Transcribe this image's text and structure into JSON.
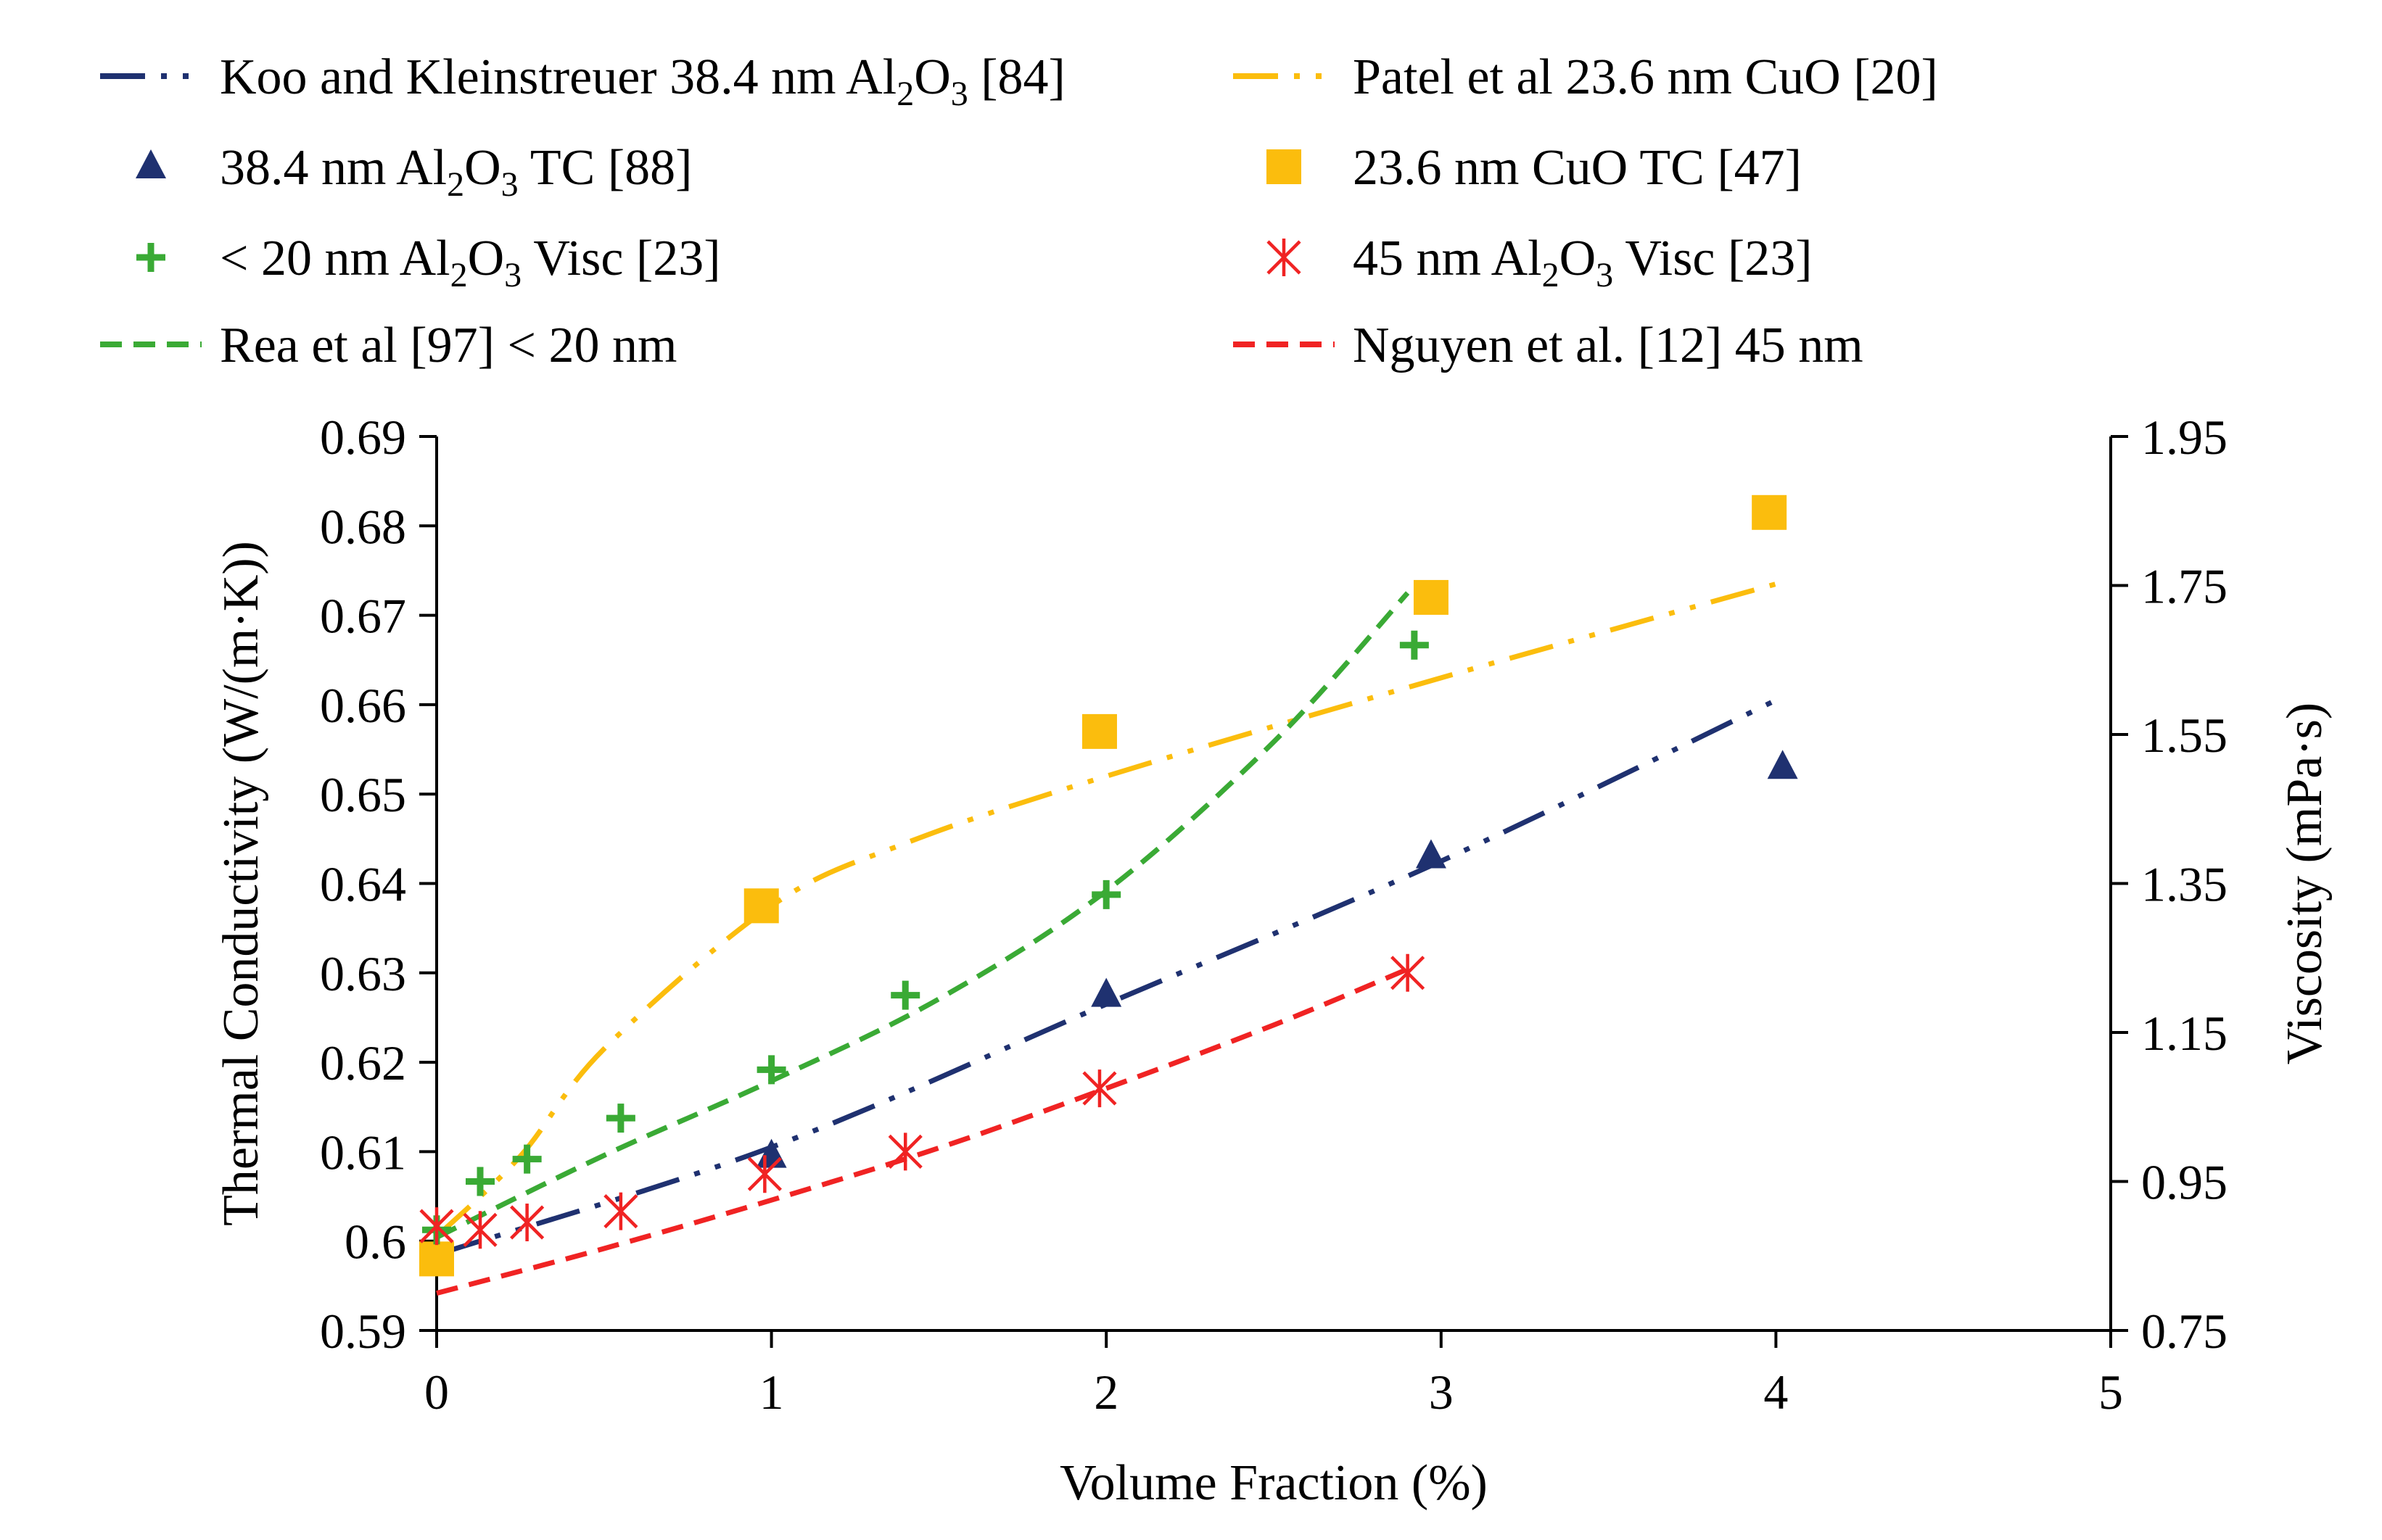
{
  "chart_data": {
    "type": "scatter",
    "title": "",
    "xlabel": "Volume Fraction (%)",
    "ylabel": "Thermal Conductivity (W/(m·K))",
    "y2label": "Viscosity (mPa·s)",
    "xlim": [
      0,
      5
    ],
    "ylim": [
      0.59,
      0.69
    ],
    "y2lim": [
      0.75,
      1.95
    ],
    "x_ticks": [
      "0",
      "1",
      "2",
      "3",
      "4",
      "5"
    ],
    "y_ticks": [
      "0.69",
      "0.68",
      "0.67",
      "0.66",
      "0.65",
      "0.64",
      "0.63",
      "0.62",
      "0.61",
      "0.6",
      "0.59"
    ],
    "y2_ticks": [
      "1.95",
      "1.75",
      "1.55",
      "1.35",
      "1.15",
      "0.95",
      "0.75"
    ],
    "series": [
      {
        "name": "Koo and Kleinstreuer 38.4 nm Al2O3 [84]",
        "label_parts": [
          {
            "t": "Koo and Kleinstreuer 38.4 nm Al"
          },
          {
            "t": "2",
            "sub": true
          },
          {
            "t": "O"
          },
          {
            "t": "3",
            "sub": true
          },
          {
            "t": " [84]"
          }
        ],
        "kind": "line",
        "axis": "left",
        "color": "#1f3170",
        "dash": "dashdotdot",
        "x": [
          0,
          1,
          2,
          3,
          4
        ],
        "y": [
          0.5985,
          0.6105,
          0.6265,
          0.6425,
          0.6605
        ]
      },
      {
        "name": "Patel et al 23.6 nm CuO [20]",
        "label_parts": [
          {
            "t": "Patel et al 23.6 nm CuO [20]"
          }
        ],
        "kind": "line",
        "axis": "left",
        "color": "#fbbd0d",
        "dash": "dashdotdot",
        "x": [
          0,
          0.25,
          0.5,
          1,
          1.4,
          2,
          3,
          4
        ],
        "y": [
          0.6005,
          0.6095,
          0.6215,
          0.6375,
          0.6445,
          0.652,
          0.663,
          0.6735
        ]
      },
      {
        "name": "38.4 nm Al2O3 TC [88]",
        "label_parts": [
          {
            "t": "38.4 nm Al"
          },
          {
            "t": "2",
            "sub": true
          },
          {
            "t": "O"
          },
          {
            "t": "3",
            "sub": true
          },
          {
            "t": " TC [88]"
          }
        ],
        "kind": "triangle",
        "axis": "left",
        "color": "#1f3170",
        "x": [
          1,
          2,
          2.97,
          4.02
        ],
        "y": [
          0.6095,
          0.6275,
          0.643,
          0.653
        ]
      },
      {
        "name": "23.6 nm CuO TC [47]",
        "label_parts": [
          {
            "t": "23.6 nm CuO TC [47]"
          }
        ],
        "kind": "square",
        "axis": "left",
        "color": "#fbbd0d",
        "x": [
          0,
          0.97,
          1.98,
          2.97,
          3.98
        ],
        "y": [
          0.598,
          0.6375,
          0.657,
          0.672,
          0.6815
        ]
      },
      {
        "name": "< 20 nm Al2O3 Visc [23]",
        "label_parts": [
          {
            "t": "< 20 nm Al"
          },
          {
            "t": "2",
            "sub": true
          },
          {
            "t": "O"
          },
          {
            "t": "3",
            "sub": true
          },
          {
            "t": " Visc [23]"
          }
        ],
        "kind": "plus",
        "axis": "right",
        "color": "#3aaa35",
        "x": [
          0,
          0.13,
          0.27,
          0.55,
          1,
          1.4,
          2,
          2.92
        ],
        "y": [
          0.885,
          0.95,
          0.98,
          1.035,
          1.1,
          1.2,
          1.335,
          1.67
        ]
      },
      {
        "name": "45 nm Al2O3 Visc [23]",
        "label_parts": [
          {
            "t": "45 nm Al"
          },
          {
            "t": "2",
            "sub": true
          },
          {
            "t": "O"
          },
          {
            "t": "3",
            "sub": true
          },
          {
            "t": " Visc [23]"
          }
        ],
        "kind": "asterisk",
        "axis": "right",
        "color": "#f02323",
        "x": [
          0,
          0.13,
          0.27,
          0.55,
          0.98,
          1.4,
          1.98,
          2.9
        ],
        "y": [
          0.89,
          0.885,
          0.895,
          0.91,
          0.96,
          0.99,
          1.075,
          1.23
        ]
      },
      {
        "name": "Rea et al [97] < 20 nm",
        "label_parts": [
          {
            "t": "Rea et al [97] < 20 nm"
          }
        ],
        "kind": "line",
        "axis": "right",
        "color": "#3aaa35",
        "dash": "dash",
        "x": [
          0,
          0.5,
          1,
          1.5,
          2,
          2.5,
          2.9
        ],
        "y": [
          0.875,
          0.985,
          1.085,
          1.195,
          1.34,
          1.54,
          1.74
        ]
      },
      {
        "name": "Nguyen et al. [12] 45 nm",
        "label_parts": [
          {
            "t": "Nguyen et al. [12] 45 nm"
          }
        ],
        "kind": "line",
        "axis": "right",
        "color": "#f02323",
        "dash": "dash",
        "x": [
          0,
          0.5,
          1,
          1.5,
          2,
          2.5,
          2.9
        ],
        "y": [
          0.8,
          0.86,
          0.925,
          0.995,
          1.075,
          1.16,
          1.235
        ]
      }
    ]
  }
}
